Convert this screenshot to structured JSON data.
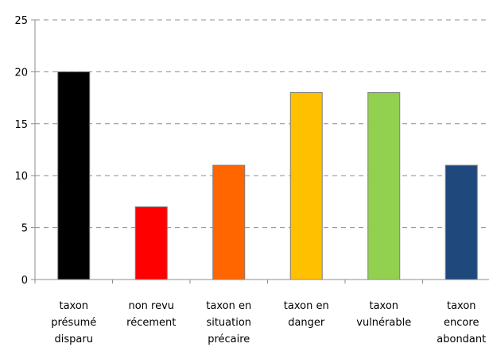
{
  "chart_data": {
    "type": "bar",
    "categories": [
      "taxon présumé disparu",
      "non revu récement",
      "taxon en situation précaire",
      "taxon en danger",
      "taxon vulnérable",
      "taxon encore abondant"
    ],
    "category_lines": [
      [
        "taxon",
        "présumé",
        "disparu"
      ],
      [
        "non revu",
        "récement"
      ],
      [
        "taxon en",
        "situation",
        "précaire"
      ],
      [
        "taxon en",
        "danger"
      ],
      [
        "taxon",
        "vulnérable"
      ],
      [
        "taxon",
        "encore",
        "abondant"
      ]
    ],
    "values": [
      20,
      7,
      11,
      18,
      18,
      11
    ],
    "colors": [
      "#000000",
      "#ff0000",
      "#ff6600",
      "#ffc000",
      "#92d050",
      "#1f497d"
    ],
    "ylim": [
      0,
      25
    ],
    "yticks": [
      0,
      5,
      10,
      15,
      20,
      25
    ],
    "grid": true,
    "title": "",
    "xlabel": "",
    "ylabel": ""
  }
}
